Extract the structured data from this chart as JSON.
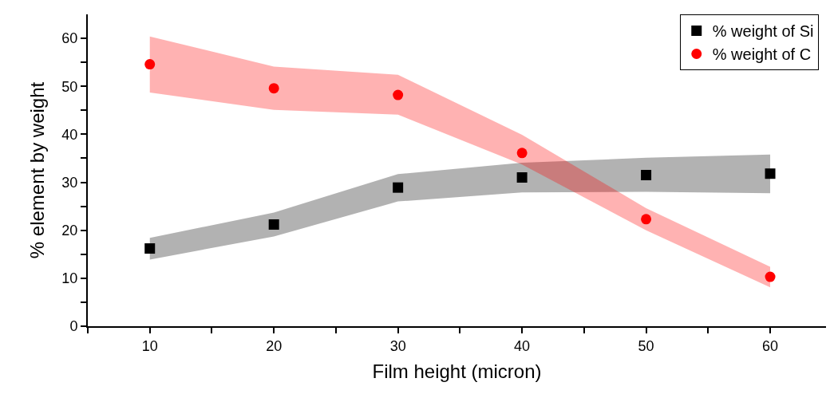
{
  "chart_data": {
    "type": "scatter",
    "xlabel": "Film height (micron)",
    "ylabel": "% element by weight",
    "x": [
      10,
      20,
      30,
      40,
      50,
      60
    ],
    "series": [
      {
        "name": "% weight of Si",
        "color": "#000000",
        "marker": "square",
        "values": [
          16.2,
          21.2,
          28.9,
          31.0,
          31.5,
          31.8
        ],
        "lower": [
          13.9,
          18.7,
          26.0,
          27.9,
          28.0,
          27.7
        ],
        "upper": [
          18.4,
          23.7,
          31.7,
          34.1,
          35.1,
          35.8
        ]
      },
      {
        "name": "% weight of C",
        "color": "#ff0000",
        "marker": "circle",
        "values": [
          54.6,
          49.6,
          48.2,
          36.1,
          22.3,
          10.3
        ],
        "lower": [
          48.7,
          45.1,
          44.1,
          33.7,
          20.0,
          8.1
        ],
        "upper": [
          60.4,
          54.1,
          52.4,
          39.9,
          24.6,
          12.4
        ]
      }
    ],
    "xlim": [
      5,
      64.5
    ],
    "ylim": [
      0,
      65
    ],
    "xticks": [
      {
        "value": 5,
        "label": null
      },
      10,
      {
        "value": 15,
        "label": null
      },
      20,
      {
        "value": 25,
        "label": null
      },
      30,
      {
        "value": 35,
        "label": null
      },
      40,
      {
        "value": 45,
        "label": null
      },
      50,
      {
        "value": 55,
        "label": null
      },
      60
    ],
    "yticks": [
      0,
      {
        "value": 5,
        "label": null
      },
      10,
      {
        "value": 15,
        "label": null
      },
      20,
      {
        "value": 25,
        "label": null
      },
      30,
      {
        "value": 35,
        "label": null
      },
      40,
      {
        "value": 45,
        "label": null
      },
      50,
      {
        "value": 55,
        "label": null
      },
      60
    ],
    "legend": "top right"
  }
}
